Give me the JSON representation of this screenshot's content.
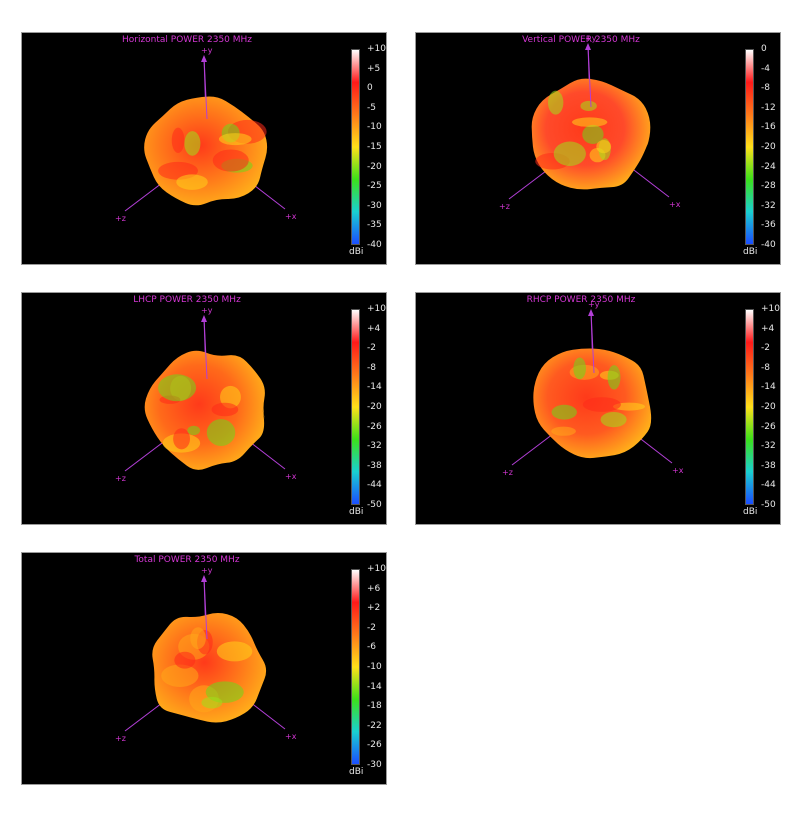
{
  "chart_data": [
    {
      "type": "3d-radiation-pattern",
      "title": "Horizontal POWER 2350  MHz",
      "colorbar_ticks": [
        "+10",
        "+5",
        "0",
        "-5",
        "-10",
        "-15",
        "-20",
        "-25",
        "-30",
        "-35",
        "-40"
      ],
      "colorbar_range": [
        -40,
        10
      ],
      "unit": "dBi",
      "axes": [
        "+y",
        "+z",
        "+x"
      ]
    },
    {
      "type": "3d-radiation-pattern",
      "title": "Vertical POWER 2350  MHz",
      "colorbar_ticks": [
        "0",
        "-4",
        "-8",
        "-12",
        "-16",
        "-20",
        "-24",
        "-28",
        "-32",
        "-36",
        "-40"
      ],
      "colorbar_range": [
        -40,
        0
      ],
      "unit": "dBi",
      "axes": [
        "+y",
        "+z",
        "+x"
      ]
    },
    {
      "type": "3d-radiation-pattern",
      "title": "LHCP POWER 2350  MHz",
      "colorbar_ticks": [
        "+10",
        "+4",
        "-2",
        "-8",
        "-14",
        "-20",
        "-26",
        "-32",
        "-38",
        "-44",
        "-50"
      ],
      "colorbar_range": [
        -50,
        10
      ],
      "unit": "dBi",
      "axes": [
        "+y",
        "+z",
        "+x"
      ]
    },
    {
      "type": "3d-radiation-pattern",
      "title": "RHCP POWER 2350  MHz",
      "colorbar_ticks": [
        "+10",
        "+4",
        "-2",
        "-8",
        "-14",
        "-20",
        "-26",
        "-32",
        "-38",
        "-44",
        "-50"
      ],
      "colorbar_range": [
        -50,
        10
      ],
      "unit": "dBi",
      "axes": [
        "+y",
        "+z",
        "+x"
      ]
    },
    {
      "type": "3d-radiation-pattern",
      "title": "Total POWER 2350  MHz",
      "colorbar_ticks": [
        "+10",
        "+6",
        "+2",
        "-2",
        "-6",
        "-10",
        "-14",
        "-18",
        "-22",
        "-26",
        "-30"
      ],
      "colorbar_range": [
        -30,
        10
      ],
      "unit": "dBi",
      "axes": [
        "+y",
        "+z",
        "+x"
      ]
    }
  ],
  "colors": {
    "panel_bg": "#000000",
    "title": "#d437d4",
    "axis": "#b23fd6",
    "colorbar": [
      "#ffffff",
      "#ff1a1a",
      "#ff7a1a",
      "#ffe01a",
      "#3de01a",
      "#1ad0d0",
      "#1a4dff"
    ]
  }
}
